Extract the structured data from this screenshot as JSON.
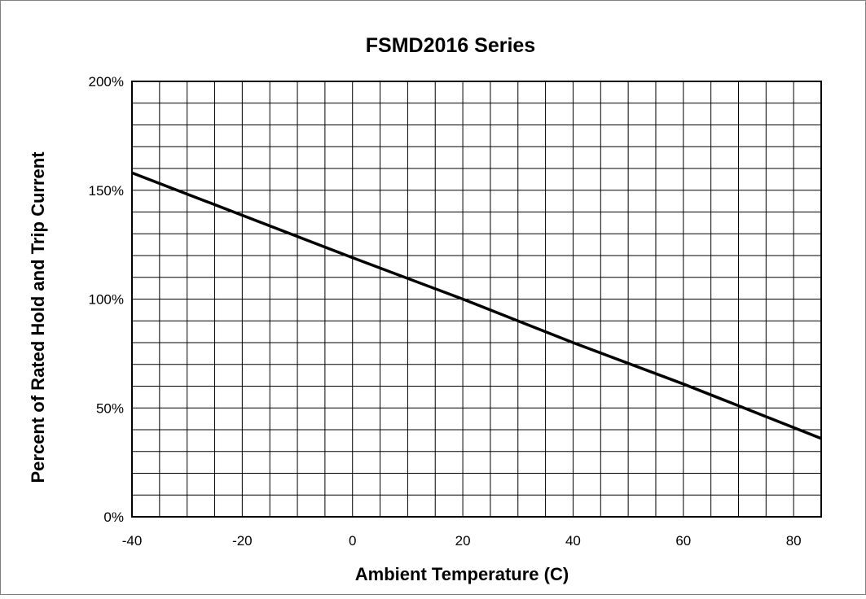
{
  "chart_data": {
    "type": "line",
    "title": "FSMD2016 Series",
    "xlabel": "Ambient Temperature (C)",
    "ylabel": "Percent of Rated Hold  and Trip Current",
    "xlim": [
      -40,
      85
    ],
    "ylim": [
      0,
      200
    ],
    "x_ticks": [
      -40,
      -20,
      0,
      20,
      40,
      60,
      80
    ],
    "x_tick_labels": [
      "-40",
      "-20",
      "0",
      "20",
      "40",
      "60",
      "80"
    ],
    "y_ticks": [
      0,
      50,
      100,
      150,
      200
    ],
    "y_tick_labels": [
      "0%",
      "50%",
      "100%",
      "150%",
      "200%"
    ],
    "x_minor_step": 5,
    "y_minor_step": 10,
    "grid": true,
    "legend": "none",
    "series": [
      {
        "x": [
          -40,
          0,
          20,
          40,
          60,
          85
        ],
        "y": [
          158,
          119,
          100,
          80,
          61,
          36
        ]
      }
    ],
    "colors": {
      "line": "#000000",
      "grid": "#000000",
      "background": "#ffffff",
      "frame": "#808080"
    }
  }
}
